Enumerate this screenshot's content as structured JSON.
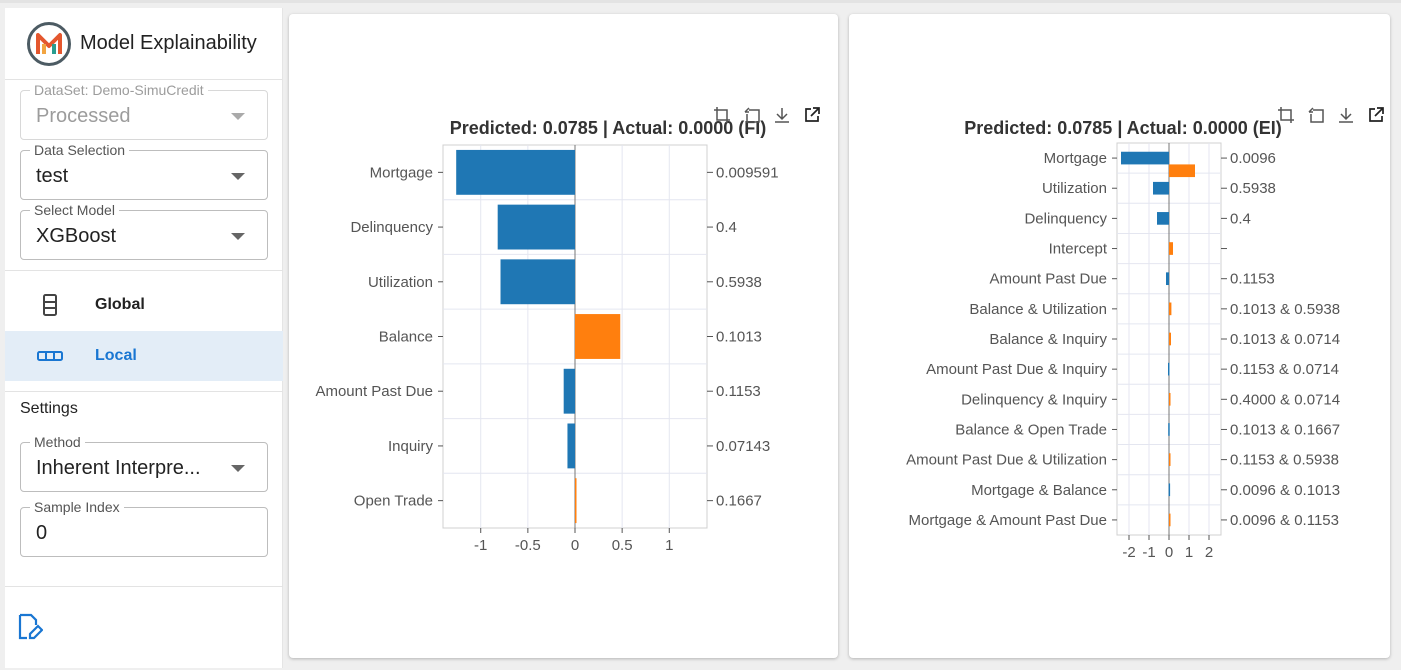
{
  "sidebar": {
    "app_title": "Model Explainability",
    "dataset": {
      "legend": "DataSet: Demo-SimuCredit",
      "value": "Processed"
    },
    "data_selection": {
      "legend": "Data Selection",
      "value": "test"
    },
    "select_model": {
      "legend": "Select Model",
      "value": "XGBoost"
    },
    "nav": [
      {
        "label": "Global",
        "icon": "list-icon",
        "active": false
      },
      {
        "label": "Local",
        "icon": "dots-icon",
        "active": true
      }
    ],
    "settings_title": "Settings",
    "method": {
      "legend": "Method",
      "value": "Inherent Interpre..."
    },
    "sample_index": {
      "legend": "Sample Index",
      "value": "0"
    }
  },
  "colors": {
    "negative": "#1f77b4",
    "positive": "#ff7f0e",
    "accent": "#1976d2"
  },
  "toolbar_icons": [
    "crop-icon",
    "reset-icon",
    "download-icon",
    "open-external-icon"
  ],
  "chart_data": [
    {
      "type": "bar",
      "orientation": "horizontal",
      "title": "Predicted: 0.0785 | Actual: 0.0000 (FI)",
      "categories": [
        "Mortgage",
        "Delinquency",
        "Utilization",
        "Balance",
        "Amount Past Due",
        "Inquiry",
        "Open Trade"
      ],
      "values": [
        -1.26,
        -0.82,
        -0.79,
        0.48,
        -0.12,
        -0.08,
        0.01
      ],
      "right_labels": [
        "0.009591",
        "0.4",
        "0.5938",
        "0.1013",
        "0.1153",
        "0.07143",
        "0.1667"
      ],
      "xlim": [
        -1.4,
        1.4
      ],
      "xticks": [
        -1,
        -0.5,
        0,
        0.5,
        1
      ],
      "grid": true
    },
    {
      "type": "bar",
      "orientation": "horizontal",
      "title": "Predicted: 0.0785 | Actual: 0.0000 (EI)",
      "categories": [
        "Mortgage",
        "Utilization",
        "Delinquency",
        "Intercept",
        "Amount Past Due",
        "Balance & Utilization",
        "Balance & Inquiry",
        "Amount Past Due & Inquiry",
        "Delinquency & Inquiry",
        "Balance & Open Trade",
        "Amount Past Due & Utilization",
        "Mortgage & Balance",
        "Mortgage & Amount Past Due"
      ],
      "values": [
        -2.4,
        -0.8,
        -0.6,
        0.2,
        -0.15,
        0.12,
        0.1,
        -0.05,
        0.05,
        -0.04,
        0.03,
        -0.02,
        0.02
      ],
      "overlay_values": [
        1.3,
        null,
        null,
        null,
        null,
        null,
        null,
        null,
        null,
        null,
        null,
        null,
        null
      ],
      "overlay_note": "",
      "right_labels": [
        "0.0096",
        "0.5938",
        "0.4",
        "",
        "0.1153",
        "0.1013 & 0.5938",
        "0.1013 & 0.0714",
        "0.1153 & 0.0714",
        "0.4000 & 0.0714",
        "0.1013 & 0.1667",
        "0.1153 & 0.5938",
        "0.0096 & 0.1013",
        "0.0096 & 0.1153"
      ],
      "xlim": [
        -2.6,
        2.6
      ],
      "xticks": [
        -2,
        -1,
        0,
        1,
        2
      ],
      "grid": true
    }
  ]
}
